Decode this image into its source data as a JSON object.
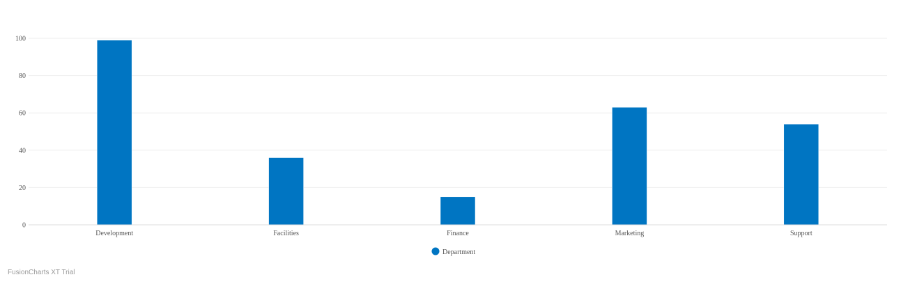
{
  "chart_data": {
    "type": "bar",
    "categories": [
      "Development",
      "Facilities",
      "Finance",
      "Marketing",
      "Support"
    ],
    "series": [
      {
        "name": "Department",
        "values": [
          99,
          36,
          15,
          63,
          54
        ],
        "color": "#0075c2"
      }
    ],
    "ylim": [
      0,
      100
    ],
    "yticks": [
      0,
      20,
      40,
      60,
      80,
      100
    ],
    "grid": true,
    "legend_position": "bottom-center"
  },
  "watermark": "FusionCharts XT Trial"
}
